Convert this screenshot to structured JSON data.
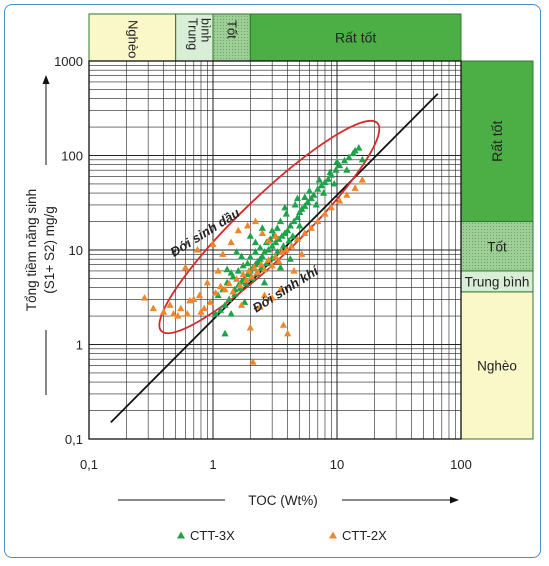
{
  "chart_data": {
    "type": "scatter",
    "x_scale": "log",
    "y_scale": "log",
    "xlim": [
      0.1,
      100
    ],
    "ylim": [
      0.1,
      1000
    ],
    "xlabel": "TOC (Wt%)",
    "ylabel_line1": "Tổng tiềm năng sinh",
    "ylabel_line2": "(S1+ S2) mg/g",
    "x_ticks": [
      {
        "value": 0.1,
        "label": "0,1"
      },
      {
        "value": 1,
        "label": "1"
      },
      {
        "value": 10,
        "label": "10"
      },
      {
        "value": 100,
        "label": "100"
      }
    ],
    "y_ticks": [
      {
        "value": 0.1,
        "label": "0,1"
      },
      {
        "value": 1,
        "label": "1"
      },
      {
        "value": 10,
        "label": "10"
      },
      {
        "value": 100,
        "label": "100"
      },
      {
        "value": 1000,
        "label": "1000"
      }
    ],
    "grid": true,
    "legend_position": "bottom",
    "top_bands": [
      {
        "label": "Nghèo",
        "from": 0.1,
        "to": 0.5,
        "color": "#faf7c8",
        "rotated": true
      },
      {
        "label": "Trung bình",
        "from": 0.5,
        "to": 1,
        "color": "#d9eed6",
        "rotated": true,
        "lines": [
          "Trung",
          "bình"
        ]
      },
      {
        "label": "Tốt",
        "from": 1,
        "to": 2,
        "color": "#9ecf96",
        "rotated": true,
        "dotted": true
      },
      {
        "label": "Rất tốt",
        "from": 2,
        "to": 100,
        "color": "#4caf45",
        "rotated": false
      }
    ],
    "right_bands": [
      {
        "label": "Rất tốt",
        "from": 20,
        "to": 1000,
        "color": "#4caf45",
        "rotated": true
      },
      {
        "label": "Tốt",
        "from": 6,
        "to": 20,
        "color": "#9ecf96",
        "dotted": true
      },
      {
        "label": "Trung bình",
        "from": 3.6,
        "to": 6,
        "color": "#d9eed6"
      },
      {
        "label": "Nghèo",
        "from": 0.1,
        "to": 3.6,
        "color": "#faf7c8"
      }
    ],
    "annotations": [
      {
        "text": "Đới sinh dầu",
        "x": 0.9,
        "y": 14
      },
      {
        "text": "Đới sinh khí",
        "x": 4.0,
        "y": 3.5
      }
    ],
    "reference_line": {
      "from": [
        0.15,
        0.15
      ],
      "to": [
        65,
        450
      ],
      "color": "#111111"
    },
    "ellipse": {
      "color": "#d62b2b",
      "from": [
        0.45,
        1.7
      ],
      "to": [
        18,
        180
      ]
    },
    "colors": {
      "ctt3x": "#1fa34a",
      "ctt2x": "#f0862a",
      "band_border": "#2f7a2a",
      "ellipse": "#d62b2b"
    },
    "series": [
      {
        "name": "CTT-3X",
        "color": "#1fa34a",
        "marker": "triangle",
        "points": [
          [
            15,
            120
          ],
          [
            13.5,
            105
          ],
          [
            12.5,
            95
          ],
          [
            14,
            112
          ],
          [
            11.5,
            88
          ],
          [
            10.5,
            78
          ],
          [
            9.8,
            70
          ],
          [
            9,
            62
          ],
          [
            8.5,
            56
          ],
          [
            8,
            52
          ],
          [
            7.5,
            48
          ],
          [
            7,
            44
          ],
          [
            6.5,
            38
          ],
          [
            6.2,
            35
          ],
          [
            5.8,
            32
          ],
          [
            5.5,
            29
          ],
          [
            5.2,
            27
          ],
          [
            5,
            25
          ],
          [
            4.8,
            22
          ],
          [
            4.5,
            20
          ],
          [
            4.2,
            18
          ],
          [
            4,
            16
          ],
          [
            3.8,
            15
          ],
          [
            3.6,
            14
          ],
          [
            3.4,
            13
          ],
          [
            3.2,
            12
          ],
          [
            3,
            11
          ],
          [
            2.8,
            10
          ],
          [
            2.6,
            9.5
          ],
          [
            2.5,
            8.5
          ],
          [
            2.4,
            8
          ],
          [
            2.3,
            7.5
          ],
          [
            2.2,
            7
          ],
          [
            2.1,
            6.5
          ],
          [
            2,
            6
          ],
          [
            1.9,
            5.5
          ],
          [
            1.8,
            5
          ],
          [
            1.7,
            4.6
          ],
          [
            1.6,
            4.2
          ],
          [
            1.5,
            3.8
          ],
          [
            6,
            42
          ],
          [
            7.2,
            55
          ],
          [
            8.8,
            66
          ],
          [
            10,
            85
          ],
          [
            5.5,
            36
          ],
          [
            4.6,
            30
          ],
          [
            3.9,
            24
          ],
          [
            3.5,
            20
          ],
          [
            3.3,
            17
          ],
          [
            3.1,
            14
          ],
          [
            2.9,
            13
          ],
          [
            2.7,
            12
          ],
          [
            2.4,
            10.5
          ],
          [
            2.2,
            9.5
          ],
          [
            2,
            8.4
          ],
          [
            1.9,
            7.2
          ],
          [
            1.75,
            6.8
          ],
          [
            1.6,
            6
          ],
          [
            1.45,
            5.2
          ],
          [
            1.3,
            4.5
          ],
          [
            1.2,
            3.8
          ],
          [
            1.1,
            3.3
          ],
          [
            5,
            18
          ],
          [
            4.4,
            14
          ],
          [
            4.1,
            12.5
          ],
          [
            3.7,
            11
          ],
          [
            3.3,
            9.5
          ],
          [
            3,
            8.2
          ],
          [
            2.7,
            7.2
          ],
          [
            2.45,
            6.4
          ],
          [
            2.25,
            5.6
          ],
          [
            2.05,
            5
          ],
          [
            1.85,
            4.4
          ],
          [
            1.65,
            3.9
          ],
          [
            1.5,
            3.4
          ],
          [
            1.35,
            3
          ],
          [
            1.25,
            2.6
          ],
          [
            1.15,
            2.3
          ],
          [
            1.05,
            2.1
          ],
          [
            2.6,
            4.5
          ],
          [
            3.5,
            6.5
          ],
          [
            4.2,
            8
          ],
          [
            1.8,
            2.8
          ],
          [
            1.4,
            2.1
          ],
          [
            1.25,
            1.3
          ],
          [
            3.8,
            28
          ],
          [
            4.8,
            35
          ],
          [
            7.8,
            40
          ],
          [
            9.5,
            50
          ],
          [
            12,
            70
          ],
          [
            16,
            90
          ],
          [
            2.2,
            12
          ],
          [
            1.7,
            8.5
          ],
          [
            1.3,
            6.2
          ],
          [
            1.55,
            9.5
          ],
          [
            2,
            14
          ],
          [
            2.5,
            17
          ],
          [
            1.4,
            5.7
          ],
          [
            3,
            16
          ],
          [
            6.8,
            30
          ]
        ]
      },
      {
        "name": "CTT-2X",
        "color": "#f0862a",
        "marker": "triangle",
        "points": [
          [
            0.28,
            3.1
          ],
          [
            0.33,
            2.4
          ],
          [
            0.4,
            2.2
          ],
          [
            0.48,
            2.1
          ],
          [
            0.55,
            2.4
          ],
          [
            0.62,
            2.1
          ],
          [
            0.7,
            3
          ],
          [
            0.78,
            3.3
          ],
          [
            0.85,
            2.4
          ],
          [
            0.95,
            2.8
          ],
          [
            1.05,
            3.5
          ],
          [
            1.15,
            4.1
          ],
          [
            1.25,
            3.8
          ],
          [
            1.35,
            4.4
          ],
          [
            1.45,
            3.6
          ],
          [
            1.55,
            4.9
          ],
          [
            1.65,
            4.2
          ],
          [
            1.75,
            5.5
          ],
          [
            1.85,
            4.8
          ],
          [
            1.95,
            6
          ],
          [
            2.05,
            5.2
          ],
          [
            2.15,
            6.5
          ],
          [
            2.3,
            5.8
          ],
          [
            2.45,
            7
          ],
          [
            2.6,
            6.2
          ],
          [
            2.8,
            7.8
          ],
          [
            3,
            6.8
          ],
          [
            3.2,
            8.5
          ],
          [
            3.4,
            7.5
          ],
          [
            3.6,
            9.5
          ],
          [
            3.9,
            10
          ],
          [
            4.3,
            11
          ],
          [
            4.8,
            13
          ],
          [
            5.5,
            15
          ],
          [
            6.2,
            17
          ],
          [
            7,
            20
          ],
          [
            8,
            24
          ],
          [
            9,
            28
          ],
          [
            10.5,
            33
          ],
          [
            12,
            38
          ],
          [
            14,
            45
          ],
          [
            16,
            55
          ],
          [
            0.6,
            6.5
          ],
          [
            0.75,
            10
          ],
          [
            1,
            11.5
          ],
          [
            1.2,
            9
          ],
          [
            1.4,
            12
          ],
          [
            1.6,
            16
          ],
          [
            1.9,
            18
          ],
          [
            2.2,
            20
          ],
          [
            2.5,
            15
          ],
          [
            2.8,
            12.5
          ],
          [
            3.2,
            14
          ],
          [
            0.9,
            4.5
          ],
          [
            1.1,
            6
          ],
          [
            2,
            1.5
          ],
          [
            2.1,
            0.65
          ],
          [
            3.7,
            1.6
          ],
          [
            4,
            1.3
          ],
          [
            2.4,
            2.5
          ],
          [
            3,
            3.1
          ],
          [
            3.5,
            3.8
          ],
          [
            0.45,
            2.6
          ],
          [
            0.52,
            2
          ],
          [
            0.65,
            2.9
          ],
          [
            0.8,
            2.2
          ],
          [
            1.7,
            2.6
          ],
          [
            2.6,
            3.3
          ],
          [
            4.5,
            6
          ],
          [
            5.2,
            9
          ]
        ]
      }
    ]
  }
}
